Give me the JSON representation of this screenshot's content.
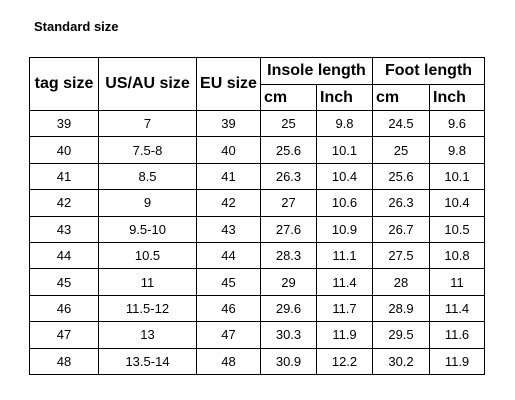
{
  "title": "Standard size",
  "headers": {
    "tag_size": "tag size",
    "us_au_size": "US/AU size",
    "eu_size": "EU size",
    "insole_length": "Insole length",
    "foot_length": "Foot length",
    "units": [
      "cm",
      "Inch",
      "cm",
      "Inch"
    ]
  },
  "rows": [
    [
      "39",
      "7",
      "39",
      "25",
      "9.8",
      "24.5",
      "9.6"
    ],
    [
      "40",
      "7.5-8",
      "40",
      "25.6",
      "10.1",
      "25",
      "9.8"
    ],
    [
      "41",
      "8.5",
      "41",
      "26.3",
      "10.4",
      "25.6",
      "10.1"
    ],
    [
      "42",
      "9",
      "42",
      "27",
      "10.6",
      "26.3",
      "10.4"
    ],
    [
      "43",
      "9.5-10",
      "43",
      "27.6",
      "10.9",
      "26.7",
      "10.5"
    ],
    [
      "44",
      "10.5",
      "44",
      "28.3",
      "11.1",
      "27.5",
      "10.8"
    ],
    [
      "45",
      "11",
      "45",
      "29",
      "11.4",
      "28",
      "11"
    ],
    [
      "46",
      "11.5-12",
      "46",
      "29.6",
      "11.7",
      "28.9",
      "11.4"
    ],
    [
      "47",
      "13",
      "47",
      "30.3",
      "11.9",
      "29.5",
      "11.6"
    ],
    [
      "48",
      "13.5-14",
      "48",
      "30.9",
      "12.2",
      "30.2",
      "11.9"
    ]
  ]
}
